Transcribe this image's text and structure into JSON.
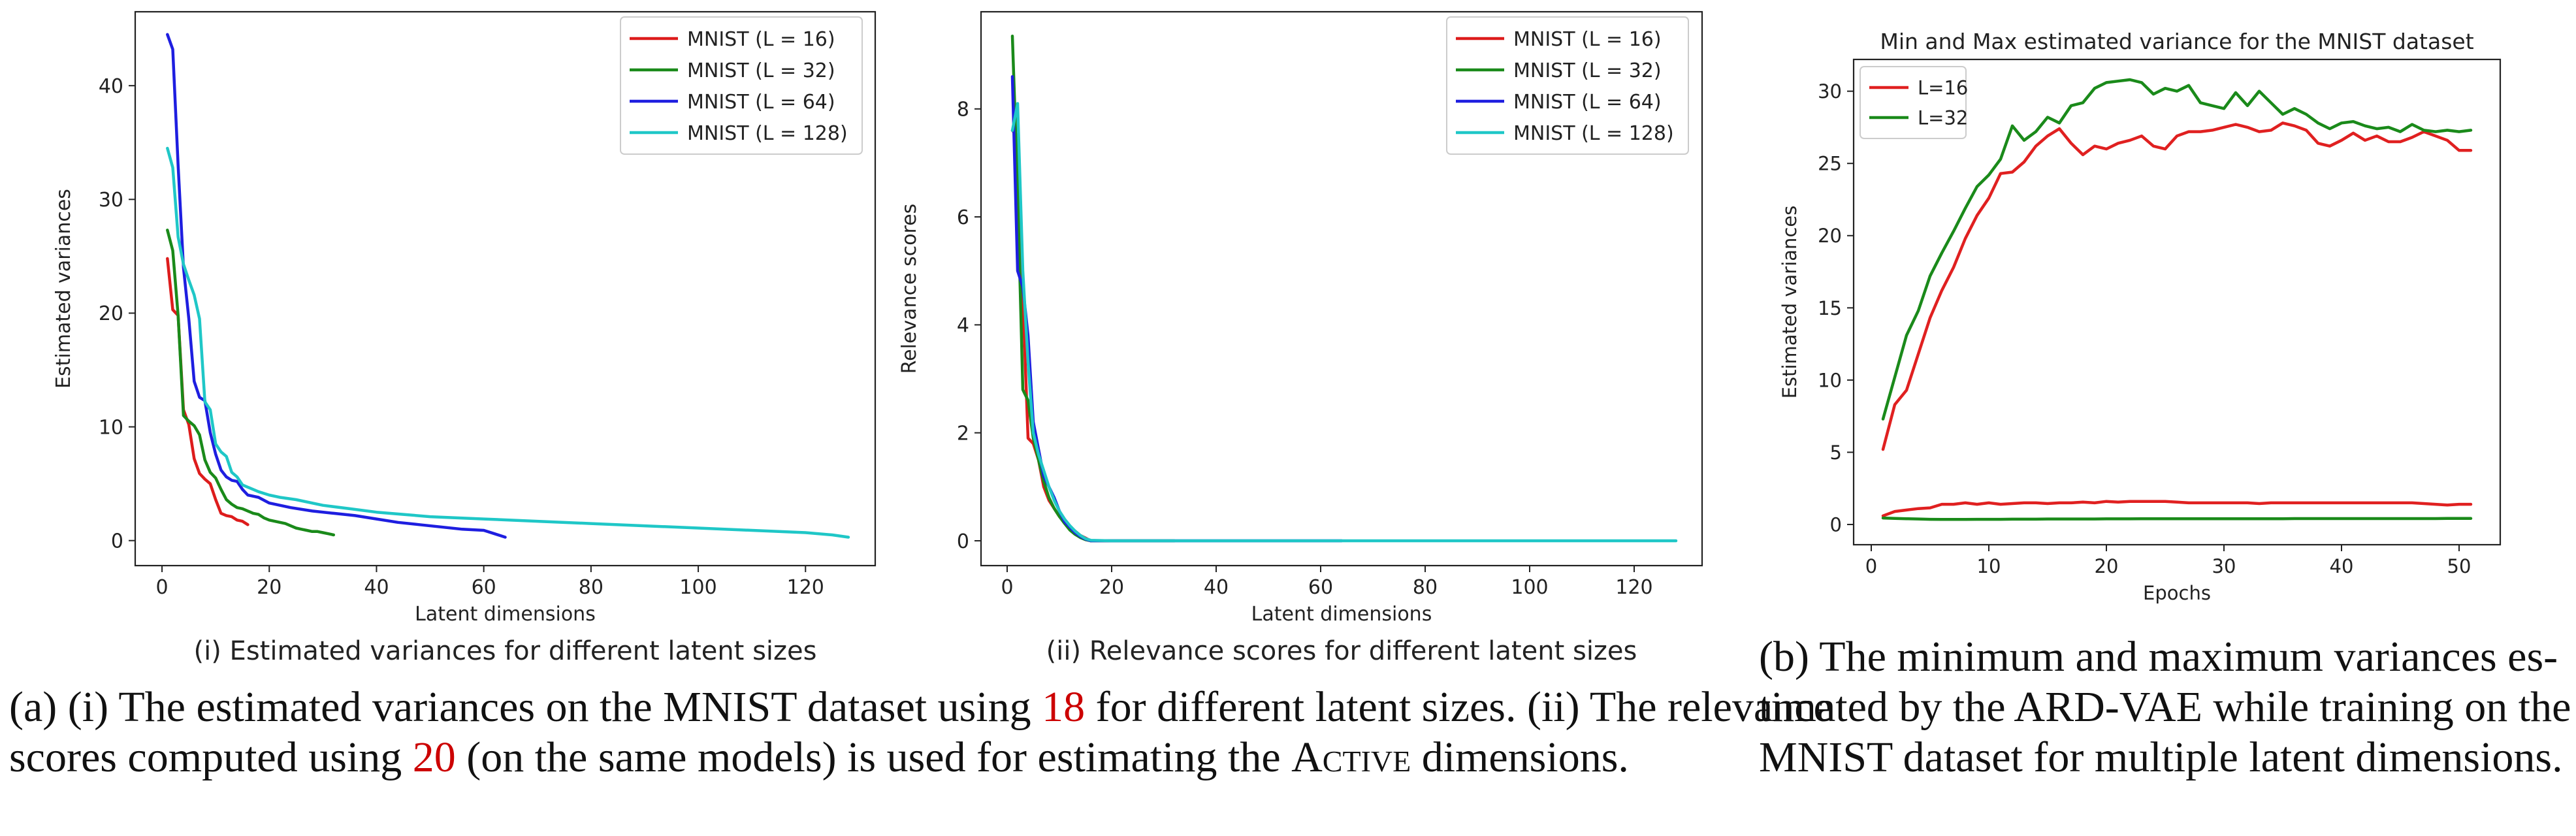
{
  "chart_data": [
    {
      "type": "line",
      "title": "",
      "subtitle": "(i) Estimated variances for different latent sizes",
      "xlabel": "Latent dimensions",
      "ylabel": "Estimated variances",
      "xlim": [
        -5,
        133
      ],
      "ylim": [
        -2.2,
        46.5
      ],
      "xticks": [
        0,
        20,
        40,
        60,
        80,
        100,
        120
      ],
      "yticks": [
        0,
        10,
        20,
        30,
        40
      ],
      "grid": false,
      "legend": "top-right",
      "series": [
        {
          "name": "MNIST (L = 16)",
          "color": "#dd1c1c",
          "x": [
            1,
            2,
            3,
            4,
            5,
            6,
            7,
            8,
            9,
            10,
            11,
            12,
            13,
            14,
            15,
            16
          ],
          "y": [
            24.8,
            20.3,
            19.8,
            11.5,
            10.2,
            7.2,
            5.9,
            5.4,
            5.0,
            3.6,
            2.4,
            2.2,
            2.1,
            1.8,
            1.7,
            1.4
          ]
        },
        {
          "name": "MNIST (L = 32)",
          "color": "#1a8a1a",
          "x": [
            1,
            2,
            3,
            4,
            5,
            6,
            7,
            8,
            9,
            10,
            11,
            12,
            13,
            14,
            15,
            16,
            17,
            18,
            19,
            20,
            21,
            22,
            23,
            24,
            25,
            26,
            27,
            28,
            29,
            30,
            31,
            32
          ],
          "y": [
            27.3,
            25.5,
            19.8,
            11.0,
            10.5,
            10.1,
            9.3,
            7.1,
            6.0,
            5.5,
            4.5,
            3.6,
            3.2,
            2.9,
            2.8,
            2.6,
            2.4,
            2.3,
            2.0,
            1.8,
            1.7,
            1.6,
            1.5,
            1.3,
            1.1,
            1.0,
            0.9,
            0.8,
            0.8,
            0.7,
            0.6,
            0.5
          ]
        },
        {
          "name": "MNIST (L = 64)",
          "color": "#1e1ee0",
          "x": [
            1,
            2,
            3,
            4,
            5,
            6,
            7,
            8,
            9,
            10,
            11,
            12,
            13,
            14,
            15,
            16,
            18,
            20,
            24,
            28,
            32,
            36,
            40,
            44,
            48,
            52,
            56,
            60,
            62,
            64
          ],
          "y": [
            44.5,
            43.2,
            33.0,
            24.0,
            19.5,
            14.0,
            12.6,
            12.3,
            9.5,
            7.6,
            6.2,
            5.6,
            5.3,
            5.2,
            4.5,
            4.0,
            3.8,
            3.3,
            2.9,
            2.6,
            2.4,
            2.2,
            1.9,
            1.6,
            1.4,
            1.2,
            1.0,
            0.9,
            0.6,
            0.3
          ]
        },
        {
          "name": "MNIST (L = 128)",
          "color": "#1fc7c7",
          "x": [
            1,
            2,
            3,
            4,
            5,
            6,
            7,
            8,
            9,
            10,
            11,
            12,
            13,
            14,
            15,
            16,
            18,
            20,
            22,
            25,
            30,
            35,
            40,
            45,
            50,
            55,
            60,
            70,
            80,
            90,
            100,
            110,
            115,
            120,
            125,
            128
          ],
          "y": [
            34.5,
            32.8,
            26.7,
            24.3,
            22.9,
            21.6,
            19.5,
            12.2,
            11.5,
            8.5,
            7.8,
            7.4,
            6.0,
            5.6,
            4.9,
            4.7,
            4.3,
            4.0,
            3.8,
            3.6,
            3.1,
            2.8,
            2.5,
            2.3,
            2.1,
            2.0,
            1.9,
            1.7,
            1.5,
            1.3,
            1.1,
            0.9,
            0.8,
            0.7,
            0.5,
            0.3
          ]
        }
      ]
    },
    {
      "type": "line",
      "title": "",
      "subtitle": "(ii) Relevance scores for different latent sizes",
      "xlabel": "Latent dimensions",
      "ylabel": "Relevance scores",
      "xlim": [
        -5,
        133
      ],
      "ylim": [
        -0.46,
        9.8
      ],
      "xticks": [
        0,
        20,
        40,
        60,
        80,
        100,
        120
      ],
      "yticks": [
        0,
        2,
        4,
        6,
        8
      ],
      "grid": false,
      "legend": "top-right",
      "series": [
        {
          "name": "MNIST (L = 16)",
          "color": "#dd1c1c",
          "x": [
            1,
            2,
            3,
            4,
            5,
            6,
            7,
            8,
            9,
            10,
            11,
            12,
            13,
            14,
            15,
            16
          ],
          "y": [
            7.6,
            7.5,
            4.5,
            1.9,
            1.8,
            1.5,
            1.0,
            0.75,
            0.6,
            0.45,
            0.35,
            0.25,
            0.18,
            0.1,
            0.05,
            0.0
          ]
        },
        {
          "name": "MNIST (L = 32)",
          "color": "#1a8a1a",
          "x": [
            1,
            2,
            3,
            4,
            5,
            6,
            7,
            8,
            9,
            10,
            11,
            12,
            13,
            14,
            15,
            16,
            20,
            24,
            28,
            32
          ],
          "y": [
            9.35,
            6.5,
            2.8,
            2.6,
            1.9,
            1.5,
            1.1,
            0.8,
            0.6,
            0.45,
            0.32,
            0.2,
            0.12,
            0.06,
            0.02,
            0.0,
            0.0,
            0.0,
            0.0,
            0.0
          ]
        },
        {
          "name": "MNIST (L = 64)",
          "color": "#1e1ee0",
          "x": [
            1,
            2,
            3,
            4,
            5,
            6,
            7,
            8,
            9,
            10,
            11,
            12,
            13,
            14,
            15,
            16,
            20,
            30,
            40,
            50,
            60,
            64
          ],
          "y": [
            8.6,
            5.0,
            4.7,
            3.8,
            2.2,
            1.7,
            1.2,
            1.0,
            0.8,
            0.55,
            0.35,
            0.25,
            0.15,
            0.08,
            0.03,
            0.0,
            0.0,
            0.0,
            0.0,
            0.0,
            0.0,
            0.0
          ]
        },
        {
          "name": "MNIST (L = 128)",
          "color": "#1fc7c7",
          "x": [
            1,
            2,
            3,
            4,
            5,
            6,
            7,
            8,
            9,
            10,
            11,
            12,
            13,
            14,
            15,
            16,
            20,
            40,
            60,
            80,
            100,
            120,
            128
          ],
          "y": [
            7.6,
            8.1,
            5.0,
            3.3,
            2.0,
            1.6,
            1.3,
            1.0,
            0.75,
            0.55,
            0.4,
            0.28,
            0.18,
            0.1,
            0.04,
            0.01,
            0.0,
            0.0,
            0.0,
            0.0,
            0.0,
            0.0,
            0.0
          ]
        }
      ]
    },
    {
      "type": "line",
      "title": "Min and Max estimated variance for the MNIST dataset",
      "xlabel": "Epochs",
      "ylabel": "Estimated variances",
      "xlim": [
        -1.5,
        53.5
      ],
      "ylim": [
        -1.4,
        32.2
      ],
      "xticks": [
        0,
        10,
        20,
        30,
        40,
        50
      ],
      "yticks": [
        0,
        5,
        10,
        15,
        20,
        25,
        30
      ],
      "grid": false,
      "legend": "top-left",
      "series": [
        {
          "name": "L=16",
          "color": "#e02020",
          "x": [
            1,
            2,
            3,
            4,
            5,
            6,
            7,
            8,
            9,
            10,
            11,
            12,
            13,
            14,
            15,
            16,
            17,
            18,
            19,
            20,
            21,
            22,
            23,
            24,
            25,
            26,
            27,
            28,
            29,
            30,
            31,
            32,
            33,
            34,
            35,
            36,
            37,
            38,
            39,
            40,
            41,
            42,
            43,
            44,
            45,
            46,
            47,
            48,
            49,
            50,
            51
          ],
          "y": [
            5.2,
            8.3,
            9.3,
            11.8,
            14.3,
            16.2,
            17.8,
            19.8,
            21.4,
            22.6,
            24.3,
            24.4,
            25.1,
            26.2,
            26.9,
            27.4,
            26.4,
            25.6,
            26.2,
            26.0,
            26.4,
            26.6,
            26.9,
            26.2,
            26.0,
            26.9,
            27.2,
            27.2,
            27.3,
            27.5,
            27.7,
            27.5,
            27.2,
            27.3,
            27.8,
            27.6,
            27.3,
            26.4,
            26.2,
            26.6,
            27.1,
            26.6,
            26.9,
            26.5,
            26.5,
            26.8,
            27.2,
            26.9,
            26.6,
            25.9,
            25.9
          ]
        },
        {
          "name": "",
          "color": "#e02020",
          "x": [
            1,
            2,
            3,
            4,
            5,
            6,
            7,
            8,
            9,
            10,
            11,
            12,
            13,
            14,
            15,
            16,
            17,
            18,
            19,
            20,
            21,
            22,
            23,
            24,
            25,
            26,
            27,
            28,
            29,
            30,
            31,
            32,
            33,
            34,
            35,
            36,
            37,
            38,
            39,
            40,
            41,
            42,
            43,
            44,
            45,
            46,
            47,
            48,
            49,
            50,
            51
          ],
          "y": [
            0.6,
            0.9,
            1.0,
            1.1,
            1.15,
            1.4,
            1.4,
            1.5,
            1.4,
            1.5,
            1.4,
            1.45,
            1.5,
            1.5,
            1.45,
            1.5,
            1.5,
            1.55,
            1.5,
            1.6,
            1.55,
            1.6,
            1.6,
            1.6,
            1.6,
            1.55,
            1.5,
            1.5,
            1.5,
            1.5,
            1.5,
            1.5,
            1.45,
            1.5,
            1.5,
            1.5,
            1.5,
            1.5,
            1.5,
            1.5,
            1.5,
            1.5,
            1.5,
            1.5,
            1.5,
            1.5,
            1.45,
            1.4,
            1.35,
            1.4,
            1.4
          ]
        },
        {
          "name": "L=32",
          "color": "#1a8a1a",
          "x": [
            1,
            2,
            3,
            4,
            5,
            6,
            7,
            8,
            9,
            10,
            11,
            12,
            13,
            14,
            15,
            16,
            17,
            18,
            19,
            20,
            21,
            22,
            23,
            24,
            25,
            26,
            27,
            28,
            29,
            30,
            31,
            32,
            33,
            34,
            35,
            36,
            37,
            38,
            39,
            40,
            41,
            42,
            43,
            44,
            45,
            46,
            47,
            48,
            49,
            50,
            51
          ],
          "y": [
            7.3,
            10.2,
            13.1,
            14.8,
            17.2,
            18.8,
            20.3,
            21.9,
            23.4,
            24.2,
            25.3,
            27.6,
            26.6,
            27.2,
            28.2,
            27.8,
            29.0,
            29.2,
            30.2,
            30.6,
            30.7,
            30.8,
            30.6,
            29.8,
            30.2,
            30.0,
            30.4,
            29.2,
            29.0,
            28.8,
            29.9,
            29.0,
            30.0,
            29.2,
            28.4,
            28.8,
            28.4,
            27.8,
            27.4,
            27.8,
            27.9,
            27.6,
            27.4,
            27.5,
            27.2,
            27.7,
            27.3,
            27.2,
            27.3,
            27.2,
            27.3
          ]
        },
        {
          "name": "",
          "color": "#1a8a1a",
          "x": [
            1,
            2,
            3,
            4,
            5,
            6,
            7,
            8,
            9,
            10,
            11,
            12,
            13,
            14,
            15,
            16,
            17,
            18,
            19,
            20,
            21,
            22,
            23,
            24,
            25,
            26,
            27,
            28,
            29,
            30,
            31,
            32,
            33,
            34,
            35,
            36,
            37,
            38,
            39,
            40,
            41,
            42,
            43,
            44,
            45,
            46,
            47,
            48,
            49,
            50,
            51
          ],
          "y": [
            0.45,
            0.42,
            0.4,
            0.38,
            0.36,
            0.35,
            0.35,
            0.35,
            0.36,
            0.36,
            0.36,
            0.37,
            0.37,
            0.37,
            0.38,
            0.38,
            0.38,
            0.38,
            0.38,
            0.39,
            0.39,
            0.39,
            0.4,
            0.4,
            0.4,
            0.4,
            0.4,
            0.4,
            0.4,
            0.4,
            0.4,
            0.4,
            0.4,
            0.4,
            0.4,
            0.41,
            0.41,
            0.41,
            0.41,
            0.41,
            0.41,
            0.41,
            0.41,
            0.41,
            0.41,
            0.41,
            0.41,
            0.41,
            0.42,
            0.42,
            0.42
          ]
        }
      ]
    }
  ],
  "captions": {
    "a_line1_pre": "(a) (i) The estimated variances on the MNIST dataset using ",
    "a_ref1": "18",
    "a_line1_post": " for different latent sizes. (ii) The relevance",
    "a_line2_pre": "scores computed using ",
    "a_ref2": "20",
    "a_line2_mid": " (on the same models) is used for estimating the ",
    "a_active": "Active",
    "a_line2_post": " dimensions.",
    "b_line1": "(b) The minimum and maximum variances es-",
    "b_line2": "timated by the ARD-VAE while training on the",
    "b_line3": "MNIST dataset for multiple latent dimensions."
  }
}
